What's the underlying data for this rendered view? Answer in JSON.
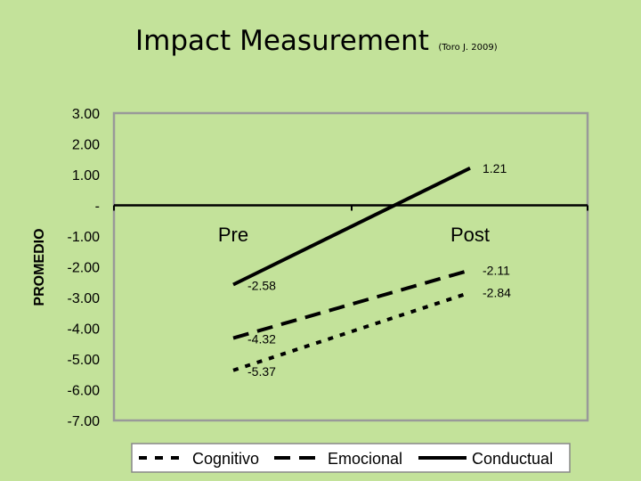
{
  "header": {
    "title": "Impact Measurement",
    "subtitle": "(Toro J. 2009)"
  },
  "chart_data": {
    "type": "line",
    "title": "Impact Measurement",
    "subtitle": "(Toro J. 2009)",
    "xlabel": "",
    "ylabel": "PROMEDIO",
    "categories": [
      "Pre",
      "Post"
    ],
    "ylim": [
      -7,
      3
    ],
    "yticks": [
      {
        "value": 3,
        "label": "3.00"
      },
      {
        "value": 2,
        "label": "2.00"
      },
      {
        "value": 1,
        "label": "1.00"
      },
      {
        "value": 0,
        "label": "-"
      },
      {
        "value": -1,
        "label": "-1.00"
      },
      {
        "value": -2,
        "label": "-2.00"
      },
      {
        "value": -3,
        "label": "-3.00"
      },
      {
        "value": -4,
        "label": "-4.00"
      },
      {
        "value": -5,
        "label": "-5.00"
      },
      {
        "value": -6,
        "label": "-6.00"
      },
      {
        "value": -7,
        "label": "-7.00"
      }
    ],
    "series": [
      {
        "name": "Cognitivo",
        "style": "dotted",
        "values": [
          -5.37,
          -2.84
        ],
        "labels": [
          "-5.37",
          "-2.84"
        ]
      },
      {
        "name": "Emocional",
        "style": "dashed",
        "values": [
          -4.32,
          -2.11
        ],
        "labels": [
          "-4.32",
          "-2.11"
        ]
      },
      {
        "name": "Conductual",
        "style": "solid",
        "values": [
          -2.58,
          1.21
        ],
        "labels": [
          "-2.58",
          "1.21"
        ]
      }
    ],
    "grid": false,
    "legend": "bottom",
    "colors": {
      "background": "#c3e29a",
      "line": "#000000",
      "plot_border": "#999999"
    }
  }
}
